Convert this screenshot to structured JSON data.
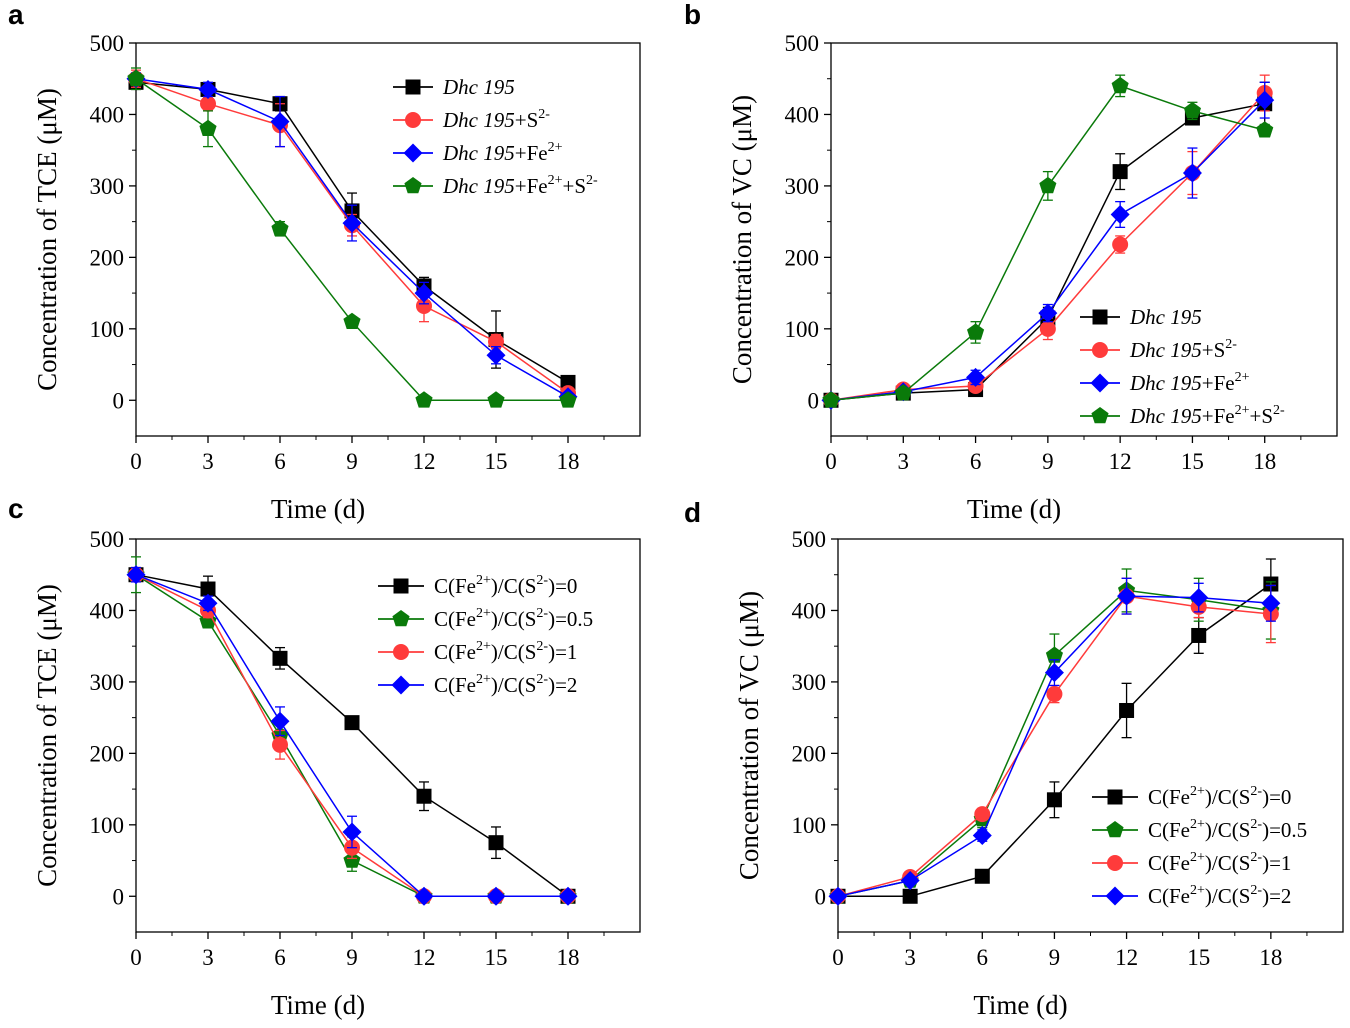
{
  "figure": {
    "panels": [
      "a",
      "b",
      "c",
      "d"
    ]
  },
  "colors": {
    "black": "#000000",
    "red": "#ff3b3b",
    "blue": "#0000ff",
    "green": "#0a7a0a"
  },
  "chart_data": [
    {
      "panel": "a",
      "type": "line",
      "xlabel": "Time (d)",
      "ylabel": "Concentration of TCE (μM)",
      "xlim": [
        0,
        21
      ],
      "ylim": [
        -50,
        500
      ],
      "xticks": [
        0,
        3,
        6,
        9,
        12,
        15,
        18
      ],
      "yticks": [
        0,
        100,
        200,
        300,
        400,
        500
      ],
      "legend_position": "top-right",
      "x": [
        0,
        3,
        6,
        9,
        12,
        15,
        18
      ],
      "series": [
        {
          "label": "Dhc 195",
          "italic": "Dhc 195",
          "sup": [],
          "color": "black",
          "marker": "square",
          "values": [
            445,
            435,
            415,
            265,
            160,
            85,
            25
          ],
          "errors": [
            10,
            8,
            10,
            25,
            12,
            40,
            5
          ]
        },
        {
          "label": "Dhc 195+S2-",
          "italic": "Dhc 195",
          "rest": "+S",
          "sup": [
            "2-"
          ],
          "color": "red",
          "marker": "circle",
          "values": [
            450,
            415,
            385,
            245,
            132,
            82,
            10
          ],
          "errors": [
            12,
            10,
            30,
            15,
            22,
            10,
            5
          ]
        },
        {
          "label": "Dhc 195+Fe2+",
          "italic": "Dhc 195",
          "rest": "+Fe",
          "sup": [
            "2+"
          ],
          "color": "blue",
          "marker": "diamond",
          "values": [
            450,
            435,
            390,
            248,
            150,
            63,
            5
          ],
          "errors": [
            8,
            10,
            35,
            25,
            15,
            12,
            5
          ]
        },
        {
          "label": "Dhc 195+Fe2++S2-",
          "italic": "Dhc 195",
          "rest": "+Fe|+S",
          "sup": [
            "2+",
            "2-"
          ],
          "color": "green",
          "marker": "pentagon",
          "values": [
            450,
            380,
            240,
            110,
            0,
            0,
            0
          ],
          "errors": [
            15,
            25,
            10,
            5,
            3,
            3,
            3
          ]
        }
      ]
    },
    {
      "panel": "b",
      "type": "line",
      "xlabel": "Time (d)",
      "ylabel": "Concentration of VC (μM)",
      "xlim": [
        0,
        21
      ],
      "ylim": [
        -50,
        500
      ],
      "xticks": [
        0,
        3,
        6,
        9,
        12,
        15,
        18
      ],
      "yticks": [
        0,
        100,
        200,
        300,
        400,
        500
      ],
      "legend_position": "bottom-right",
      "x": [
        0,
        3,
        6,
        9,
        12,
        15,
        18
      ],
      "series": [
        {
          "label": "Dhc 195",
          "italic": "Dhc 195",
          "sup": [],
          "color": "black",
          "marker": "square",
          "values": [
            0,
            10,
            15,
            115,
            320,
            395,
            415
          ],
          "errors": [
            3,
            3,
            5,
            15,
            25,
            5,
            30
          ]
        },
        {
          "label": "Dhc 195+S2-",
          "italic": "Dhc 195",
          "rest": "+S",
          "sup": [
            "2-"
          ],
          "color": "red",
          "marker": "circle",
          "values": [
            0,
            15,
            20,
            100,
            218,
            318,
            430
          ],
          "errors": [
            3,
            5,
            5,
            15,
            12,
            30,
            25
          ]
        },
        {
          "label": "Dhc 195+Fe2+",
          "italic": "Dhc 195",
          "rest": "+Fe",
          "sup": [
            "2+"
          ],
          "color": "blue",
          "marker": "diamond",
          "values": [
            0,
            12,
            32,
            122,
            260,
            318,
            420
          ],
          "errors": [
            3,
            3,
            10,
            12,
            18,
            35,
            25
          ]
        },
        {
          "label": "Dhc 195+Fe2++S2-",
          "italic": "Dhc 195",
          "rest": "+Fe|+S",
          "sup": [
            "2+",
            "2-"
          ],
          "color": "green",
          "marker": "pentagon",
          "values": [
            0,
            10,
            95,
            300,
            440,
            405,
            378
          ],
          "errors": [
            3,
            3,
            15,
            20,
            15,
            12,
            8
          ]
        }
      ]
    },
    {
      "panel": "c",
      "type": "line",
      "xlabel": "Time (d)",
      "ylabel": "Concentration of TCE (μM)",
      "xlim": [
        0,
        21
      ],
      "ylim": [
        -50,
        500
      ],
      "xticks": [
        0,
        3,
        6,
        9,
        12,
        15,
        18
      ],
      "yticks": [
        0,
        100,
        200,
        300,
        400,
        500
      ],
      "legend_position": "top-right",
      "x": [
        0,
        3,
        6,
        9,
        12,
        15,
        18
      ],
      "series": [
        {
          "label": "C(Fe2+)/C(S2-)=0",
          "ratio": "0",
          "color": "black",
          "marker": "square",
          "values": [
            450,
            430,
            333,
            243,
            140,
            75,
            0
          ],
          "errors": [
            10,
            18,
            15,
            5,
            20,
            22,
            3
          ]
        },
        {
          "label": "C(Fe2+)/C(S2-)=0.5",
          "ratio": "0.5",
          "color": "green",
          "marker": "pentagon",
          "values": [
            450,
            385,
            225,
            50,
            0,
            0,
            0
          ],
          "errors": [
            25,
            8,
            20,
            15,
            3,
            3,
            3
          ]
        },
        {
          "label": "C(Fe2+)/C(S2-)=1",
          "ratio": "1",
          "color": "red",
          "marker": "circle",
          "values": [
            450,
            400,
            212,
            68,
            0,
            0,
            0
          ],
          "errors": [
            10,
            10,
            20,
            15,
            3,
            3,
            3
          ]
        },
        {
          "label": "C(Fe2+)/C(S2-)=2",
          "ratio": "2",
          "color": "blue",
          "marker": "diamond",
          "values": [
            450,
            410,
            245,
            90,
            0,
            0,
            0
          ],
          "errors": [
            10,
            10,
            20,
            22,
            3,
            3,
            3
          ]
        }
      ]
    },
    {
      "panel": "d",
      "type": "line",
      "xlabel": "Time (d)",
      "ylabel": "Concentration of VC (μM)",
      "xlim": [
        0,
        21
      ],
      "ylim": [
        -50,
        500
      ],
      "xticks": [
        0,
        3,
        6,
        9,
        12,
        15,
        18
      ],
      "yticks": [
        0,
        100,
        200,
        300,
        400,
        500
      ],
      "legend_position": "bottom-right",
      "x": [
        0,
        3,
        6,
        9,
        12,
        15,
        18
      ],
      "series": [
        {
          "label": "C(Fe2+)/C(S2-)=0",
          "ratio": "0",
          "color": "black",
          "marker": "square",
          "values": [
            0,
            0,
            28,
            135,
            260,
            365,
            437
          ],
          "errors": [
            3,
            3,
            5,
            25,
            38,
            25,
            35
          ]
        },
        {
          "label": "C(Fe2+)/C(S2-)=0.5",
          "ratio": "0.5",
          "color": "green",
          "marker": "pentagon",
          "values": [
            0,
            22,
            108,
            337,
            428,
            415,
            400
          ],
          "errors": [
            3,
            5,
            12,
            30,
            30,
            30,
            40
          ]
        },
        {
          "label": "C(Fe2+)/C(S2-)=1",
          "ratio": "1",
          "color": "red",
          "marker": "circle",
          "values": [
            0,
            27,
            115,
            283,
            420,
            405,
            395
          ],
          "errors": [
            3,
            5,
            8,
            12,
            25,
            15,
            40
          ]
        },
        {
          "label": "C(Fe2+)/C(S2-)=2",
          "ratio": "2",
          "color": "blue",
          "marker": "diamond",
          "values": [
            0,
            22,
            85,
            313,
            420,
            418,
            410
          ],
          "errors": [
            3,
            3,
            8,
            18,
            25,
            20,
            25
          ]
        }
      ]
    }
  ]
}
